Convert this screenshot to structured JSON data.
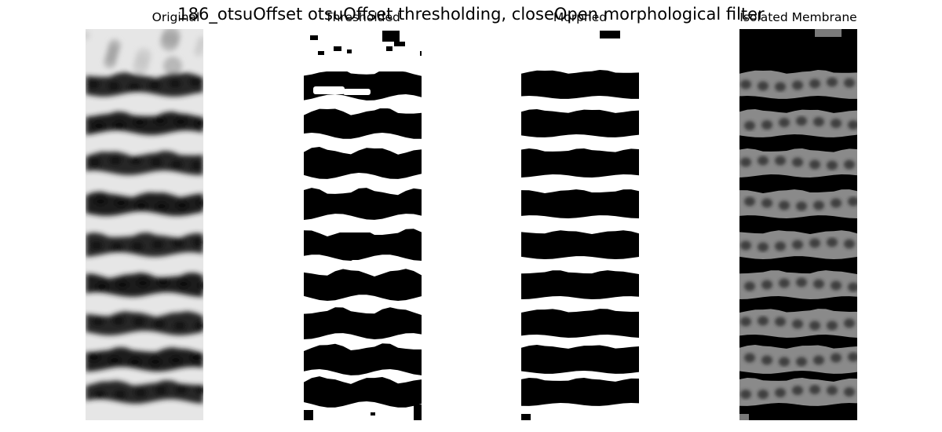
{
  "figure": {
    "suptitle": "186_otsuOffset otsuOffset thresholding, closeOpen morphological filter"
  },
  "panels": [
    {
      "title": "Original",
      "kind": "grayscale-original"
    },
    {
      "title": "Thresholded",
      "kind": "binary-noisy"
    },
    {
      "title": "Morphed",
      "kind": "binary-smoothed"
    },
    {
      "title": "Isolated Membrane",
      "kind": "masked-grayscale"
    }
  ]
}
